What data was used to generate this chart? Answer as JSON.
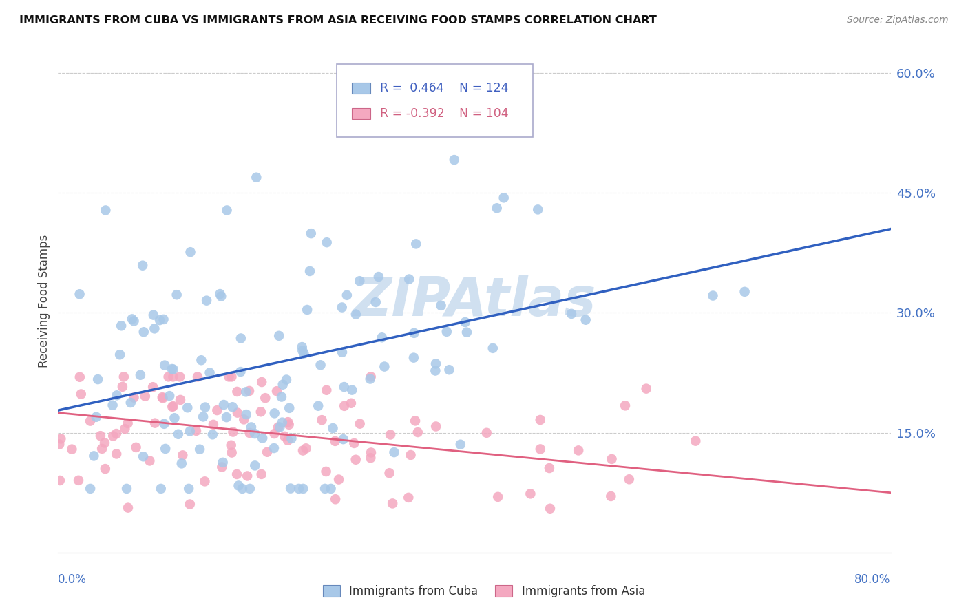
{
  "title": "IMMIGRANTS FROM CUBA VS IMMIGRANTS FROM ASIA RECEIVING FOOD STAMPS CORRELATION CHART",
  "source": "Source: ZipAtlas.com",
  "ylabel": "Receiving Food Stamps",
  "yticks": [
    0.0,
    0.15,
    0.3,
    0.45,
    0.6
  ],
  "ytick_labels": [
    "",
    "15.0%",
    "30.0%",
    "45.0%",
    "60.0%"
  ],
  "xlim": [
    0.0,
    0.8
  ],
  "ylim": [
    0.0,
    0.63
  ],
  "legend_r_cuba": "R =  0.464",
  "legend_n_cuba": "N = 124",
  "legend_r_asia": "R = -0.392",
  "legend_n_asia": "N = 104",
  "color_cuba": "#a8c8e8",
  "color_asia": "#f4a8c0",
  "line_color_cuba": "#3060c0",
  "line_color_asia": "#e06080",
  "watermark": "ZIPAtlas",
  "watermark_color": "#d0e0f0",
  "background_color": "#ffffff",
  "cuba_line_x0": 0.0,
  "cuba_line_y0": 0.178,
  "cuba_line_x1": 0.8,
  "cuba_line_y1": 0.405,
  "asia_line_x0": 0.0,
  "asia_line_y0": 0.175,
  "asia_line_x1": 0.8,
  "asia_line_y1": 0.075
}
